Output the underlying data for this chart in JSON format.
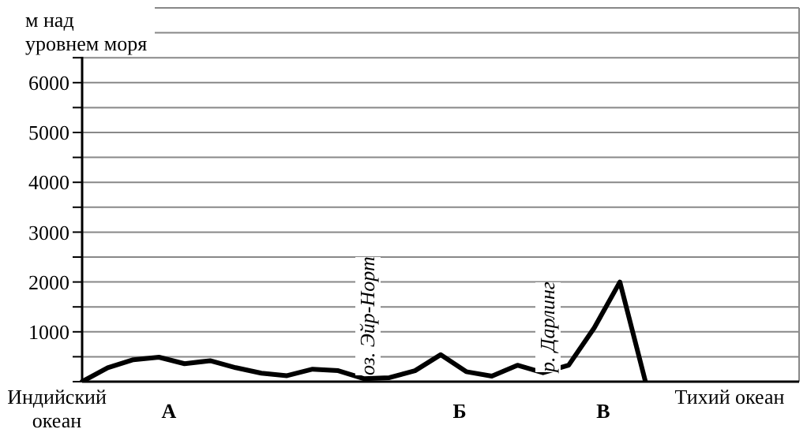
{
  "chart_data": {
    "type": "line",
    "ylabel": "м над уровнем моря",
    "categories": [
      null,
      null,
      null,
      null,
      null,
      null,
      null,
      null,
      null,
      null,
      null,
      null,
      null,
      null,
      null,
      null,
      null,
      null,
      null,
      null,
      null,
      null,
      null,
      null,
      null,
      null,
      null,
      null,
      null
    ],
    "series": [
      {
        "color": "#000000",
        "values": [
          0,
          280,
          440,
          490,
          360,
          420,
          280,
          170,
          120,
          250,
          220,
          60,
          80,
          220,
          540,
          200,
          110,
          330,
          180,
          330,
          1080,
          2000,
          0,
          null,
          null,
          null,
          null,
          null,
          null
        ]
      }
    ],
    "ylim": [
      0,
      7500
    ],
    "yticks": [
      {
        "value": 0,
        "label": null
      },
      {
        "value": 500,
        "label": null
      },
      1000,
      {
        "value": 1500,
        "label": null
      },
      2000,
      {
        "value": 2500,
        "label": null
      },
      3000,
      {
        "value": 3500,
        "label": null
      },
      4000,
      {
        "value": 4500,
        "label": null
      },
      5000,
      {
        "value": 5500,
        "label": null
      },
      6000,
      {
        "value": 6500,
        "label": null
      },
      {
        "value": 7000,
        "label": null
      },
      {
        "value": 7500,
        "label": null
      }
    ],
    "grid": true,
    "tick_labels": "y",
    "annotations": [
      "Индийский океан",
      "А",
      "Б",
      "В",
      "Тихий океан",
      "оз. Эйр-Норт",
      "р. Дарлинг"
    ]
  }
}
